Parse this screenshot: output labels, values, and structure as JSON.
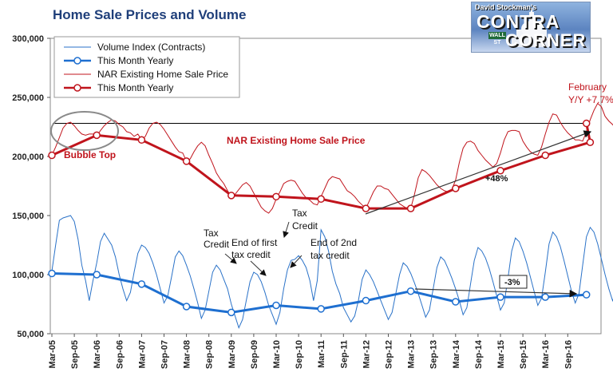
{
  "header": {
    "title": "Home Sale Prices and Volume",
    "logo_line1": "David Stockman's",
    "logo_line2": "CONTRA",
    "logo_line3": "CORNER",
    "logo_sign": "WALL ST"
  },
  "chart_data": {
    "type": "line",
    "title": "Home Sale Prices and Volume",
    "xlabel": "",
    "ylabel": "",
    "ylim": [
      50000,
      300000
    ],
    "yticks": [
      50000,
      100000,
      150000,
      200000,
      250000,
      300000
    ],
    "ytick_labels": [
      "50,000",
      "100,000",
      "150,000",
      "200,000",
      "250,000",
      "300,000"
    ],
    "grid": false,
    "legend_position": "top-left",
    "x_start": "Mar-05",
    "x_end": "Feb-17",
    "x_tick_labels": [
      "Mar-05",
      "Sep-05",
      "Mar-06",
      "Sep-06",
      "Mar-07",
      "Sep-07",
      "Mar-08",
      "Sep-08",
      "Mar-09",
      "Sep-09",
      "Mar-10",
      "Sep-10",
      "Mar-11",
      "Sep-11",
      "Mar-12",
      "Sep-12",
      "Mar-13",
      "Sep-13",
      "Mar-14",
      "Sep-14",
      "Mar-15",
      "Sep-15",
      "Mar-16",
      "Sep-16"
    ],
    "series": [
      {
        "name": "Volume Index (Contracts)",
        "color": "#2a72c8",
        "style": "thin-line",
        "values": [
          103000,
          125000,
          146000,
          148000,
          149000,
          150000,
          145000,
          130000,
          108000,
          95000,
          78000,
          95000,
          110000,
          128000,
          135000,
          130000,
          125000,
          115000,
          100000,
          88000,
          78000,
          85000,
          102000,
          118000,
          125000,
          123000,
          118000,
          110000,
          100000,
          88000,
          76000,
          82000,
          98000,
          115000,
          120000,
          116000,
          108000,
          99000,
          88000,
          76000,
          63000,
          70000,
          86000,
          102000,
          108000,
          104000,
          96000,
          88000,
          75000,
          65000,
          55000,
          62000,
          78000,
          94000,
          102000,
          100000,
          94000,
          85000,
          74000,
          66000,
          58000,
          68000,
          88000,
          104000,
          112000,
          113000,
          116000,
          112000,
          106000,
          95000,
          78000,
          95000,
          138000,
          132000,
          120000,
          103000,
          92000,
          84000,
          72000,
          66000,
          60000,
          65000,
          78000,
          96000,
          104000,
          100000,
          94000,
          86000,
          78000,
          70000,
          62000,
          68000,
          84000,
          100000,
          110000,
          107000,
          101000,
          93000,
          84000,
          74000,
          64000,
          70000,
          88000,
          106000,
          115000,
          112000,
          105000,
          97000,
          88000,
          78000,
          66000,
          72000,
          92000,
          112000,
          123000,
          120000,
          114000,
          105000,
          94000,
          82000,
          70000,
          76000,
          97000,
          120000,
          131000,
          128000,
          120000,
          110000,
          98000,
          86000,
          74000,
          80000,
          102000,
          126000,
          136000,
          132000,
          124000,
          112000,
          99000,
          86000,
          76000,
          84000,
          108000,
          132000,
          140000,
          136000,
          126000,
          113000,
          100000,
          88000,
          78000,
          86000,
          110000,
          126000,
          130000,
          126000,
          116000,
          100000,
          88000,
          68000,
          84000
        ]
      },
      {
        "name": "This Month Yearly",
        "color": "#1e6fd0",
        "style": "thick-line-circles",
        "values": [
          101000,
          100000,
          92000,
          73000,
          68000,
          74000,
          71000,
          78000,
          86000,
          77000,
          81000,
          81000,
          83000
        ]
      },
      {
        "name": "NAR Existing Home Sale Price",
        "color": "#c0141c",
        "style": "thin-line",
        "values": [
          201000,
          208000,
          216000,
          224000,
          228000,
          229000,
          226000,
          222000,
          219000,
          218000,
          219000,
          219000,
          217000,
          222000,
          226000,
          229000,
          231000,
          230000,
          227000,
          225000,
          221000,
          220000,
          217000,
          219000,
          214000,
          217000,
          224000,
          228000,
          229000,
          227000,
          223000,
          218000,
          213000,
          208000,
          204000,
          203000,
          196000,
          198000,
          204000,
          209000,
          212000,
          209000,
          201000,
          194000,
          186000,
          181000,
          177000,
          171000,
          166000,
          168000,
          172000,
          176000,
          178000,
          175000,
          169000,
          163000,
          157000,
          154000,
          152000,
          156000,
          164000,
          170000,
          177000,
          179000,
          180000,
          179000,
          174000,
          169000,
          165000,
          163000,
          160000,
          159000,
          166000,
          173000,
          180000,
          183000,
          182000,
          181000,
          176000,
          171000,
          169000,
          166000,
          162000,
          159000,
          156000,
          163000,
          170000,
          175000,
          175000,
          173000,
          172000,
          168000,
          164000,
          160000,
          158000,
          156000,
          156000,
          168000,
          182000,
          189000,
          187000,
          184000,
          180000,
          176000,
          173000,
          171000,
          170000,
          172000,
          180000,
          195000,
          207000,
          212000,
          213000,
          211000,
          205000,
          201000,
          197000,
          194000,
          191000,
          194000,
          203000,
          214000,
          221000,
          222000,
          222000,
          221000,
          213000,
          208000,
          204000,
          202000,
          201000,
          208000,
          219000,
          229000,
          236000,
          235000,
          229000,
          224000,
          220000,
          217000,
          214000,
          214000,
          213000,
          221000,
          231000,
          239000,
          245000,
          242000,
          234000,
          230000,
          227000,
          223000,
          221000,
          223000,
          228000,
          233000,
          240000,
          248000,
          247000,
          242000,
          235000,
          234000,
          232000,
          228000
        ]
      },
      {
        "name": "This Month Yearly",
        "color": "#c0141c",
        "style": "thick-line-circles",
        "values": [
          201000,
          218000,
          214000,
          196000,
          167000,
          166000,
          164000,
          156000,
          156000,
          173000,
          188000,
          201000,
          212000,
          228000
        ]
      }
    ],
    "reference_line": {
      "y": 228000,
      "color": "#000000"
    },
    "annotations": [
      {
        "id": "nar-label",
        "text": "NAR Existing Home Sale Price",
        "color": "#c0141c"
      },
      {
        "id": "bubble-top",
        "text": "Bubble Top",
        "color": "#c0141c"
      },
      {
        "id": "february",
        "text": "February",
        "color": "#c0141c"
      },
      {
        "id": "yy",
        "text": "Y/Y +7.7%",
        "color": "#c0141c"
      },
      {
        "id": "plus48",
        "text": "+48%",
        "color": "#111111"
      },
      {
        "id": "tax-credit-1a",
        "text": "Tax",
        "color": "#111111"
      },
      {
        "id": "tax-credit-1b",
        "text": "Credit",
        "color": "#111111"
      },
      {
        "id": "end-first-a",
        "text": "End of first",
        "color": "#111111"
      },
      {
        "id": "end-first-b",
        "text": "tax credit",
        "color": "#111111"
      },
      {
        "id": "tax-credit-2a",
        "text": "Tax",
        "color": "#111111"
      },
      {
        "id": "tax-credit-2b",
        "text": "Credit",
        "color": "#111111"
      },
      {
        "id": "end-second-a",
        "text": "End of 2nd",
        "color": "#111111"
      },
      {
        "id": "end-second-b",
        "text": "tax credit",
        "color": "#111111"
      },
      {
        "id": "minus3",
        "text": "-3%",
        "color": "#111111"
      }
    ]
  }
}
